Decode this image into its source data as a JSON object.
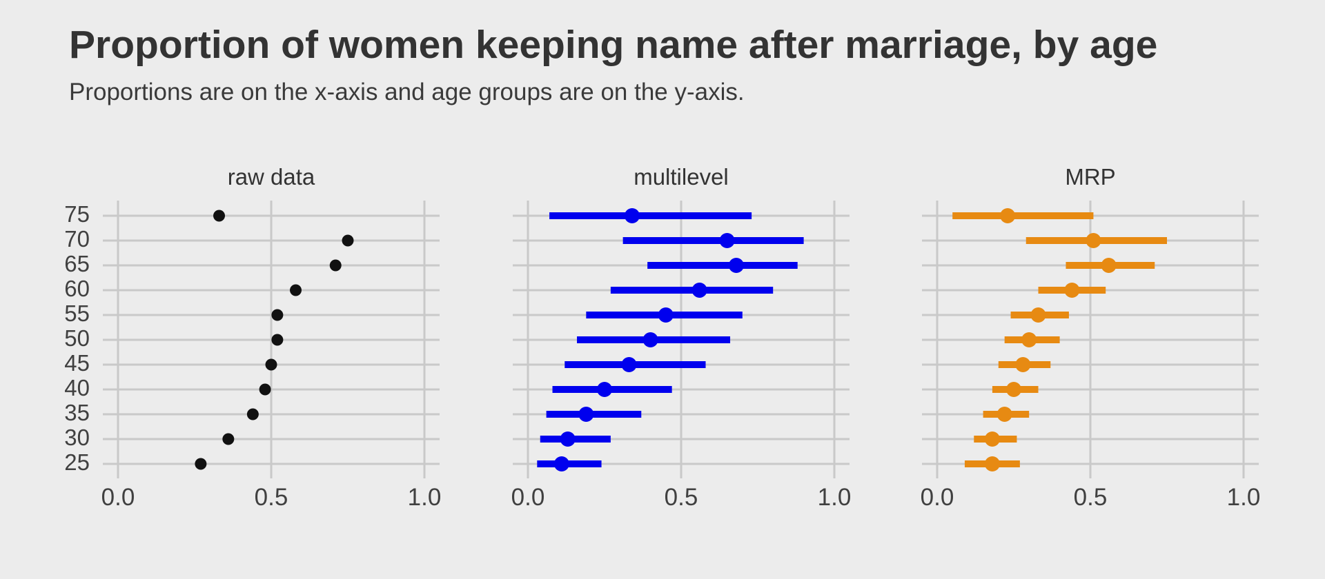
{
  "chart_data": {
    "type": "scatter",
    "subtype": "dot-and-interval-panels",
    "title": "Proportion of women keeping name after marriage, by age",
    "subtitle": "Proportions are on the x-axis and age groups are on the y-axis.",
    "xlabel": "",
    "ylabel": "",
    "xlim": [
      -0.05,
      1.05
    ],
    "x_ticks": [
      {
        "label": "0.0",
        "value": 0.0
      },
      {
        "label": "0.5",
        "value": 0.5
      },
      {
        "label": "1.0",
        "value": 1.0
      }
    ],
    "y_categories": [
      "25",
      "30",
      "35",
      "40",
      "45",
      "50",
      "55",
      "60",
      "65",
      "70",
      "75"
    ],
    "grid": "major-only",
    "legend_position": "none",
    "panels": [
      {
        "label": "raw data",
        "color": "#111111",
        "mark": "point",
        "points": [
          {
            "age": "25",
            "est": 0.27
          },
          {
            "age": "30",
            "est": 0.36
          },
          {
            "age": "35",
            "est": 0.44
          },
          {
            "age": "40",
            "est": 0.48
          },
          {
            "age": "45",
            "est": 0.5
          },
          {
            "age": "50",
            "est": 0.52
          },
          {
            "age": "55",
            "est": 0.52
          },
          {
            "age": "60",
            "est": 0.58
          },
          {
            "age": "65",
            "est": 0.71
          },
          {
            "age": "70",
            "est": 0.75
          },
          {
            "age": "75",
            "est": 0.33
          }
        ]
      },
      {
        "label": "multilevel",
        "color": "#0000EE",
        "mark": "point-interval",
        "points": [
          {
            "age": "25",
            "est": 0.11,
            "lo": 0.03,
            "hi": 0.24
          },
          {
            "age": "30",
            "est": 0.13,
            "lo": 0.04,
            "hi": 0.27
          },
          {
            "age": "35",
            "est": 0.19,
            "lo": 0.06,
            "hi": 0.37
          },
          {
            "age": "40",
            "est": 0.25,
            "lo": 0.08,
            "hi": 0.47
          },
          {
            "age": "45",
            "est": 0.33,
            "lo": 0.12,
            "hi": 0.58
          },
          {
            "age": "50",
            "est": 0.4,
            "lo": 0.16,
            "hi": 0.66
          },
          {
            "age": "55",
            "est": 0.45,
            "lo": 0.19,
            "hi": 0.7
          },
          {
            "age": "60",
            "est": 0.56,
            "lo": 0.27,
            "hi": 0.8
          },
          {
            "age": "65",
            "est": 0.68,
            "lo": 0.39,
            "hi": 0.88
          },
          {
            "age": "70",
            "est": 0.65,
            "lo": 0.31,
            "hi": 0.9
          },
          {
            "age": "75",
            "est": 0.34,
            "lo": 0.07,
            "hi": 0.73
          }
        ]
      },
      {
        "label": "MRP",
        "color": "#E78A12",
        "mark": "point-interval",
        "points": [
          {
            "age": "25",
            "est": 0.18,
            "lo": 0.09,
            "hi": 0.27
          },
          {
            "age": "30",
            "est": 0.18,
            "lo": 0.12,
            "hi": 0.26
          },
          {
            "age": "35",
            "est": 0.22,
            "lo": 0.15,
            "hi": 0.3
          },
          {
            "age": "40",
            "est": 0.25,
            "lo": 0.18,
            "hi": 0.33
          },
          {
            "age": "45",
            "est": 0.28,
            "lo": 0.2,
            "hi": 0.37
          },
          {
            "age": "50",
            "est": 0.3,
            "lo": 0.22,
            "hi": 0.4
          },
          {
            "age": "55",
            "est": 0.33,
            "lo": 0.24,
            "hi": 0.43
          },
          {
            "age": "60",
            "est": 0.44,
            "lo": 0.33,
            "hi": 0.55
          },
          {
            "age": "65",
            "est": 0.56,
            "lo": 0.42,
            "hi": 0.71
          },
          {
            "age": "70",
            "est": 0.51,
            "lo": 0.29,
            "hi": 0.75
          },
          {
            "age": "75",
            "est": 0.23,
            "lo": 0.05,
            "hi": 0.51
          }
        ]
      }
    ],
    "colors": {
      "background": "#ECECEC",
      "gridline": "#C9C9C9",
      "title_text": "#333333",
      "subtitle_text": "#3A3A3A",
      "tick_text": "#404040",
      "panel_title_text": "#333333"
    }
  }
}
